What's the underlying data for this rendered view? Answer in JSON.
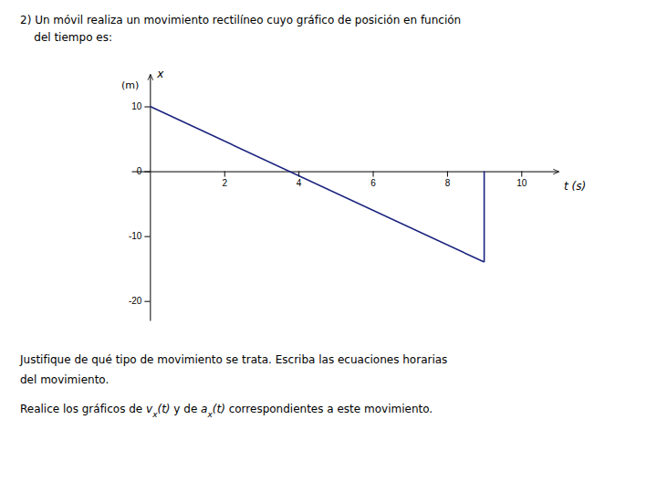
{
  "chart_data": {
    "type": "line",
    "title": "2) Un móvil realiza un movimiento rectilíneo cuyo gráfico de posición en función",
    "subtitle": "    del tiempo es:",
    "x_label": "t (s)",
    "y_label": "x",
    "y_label_unit": "(m)",
    "series": [
      {
        "x": [
          0,
          9
        ],
        "values": [
          10,
          -14
        ],
        "color": "#1a237e"
      },
      {
        "x": [
          9,
          9
        ],
        "values": [
          0,
          -14
        ],
        "color": "#1a237e"
      }
    ],
    "xlim": [
      -0.5,
      11.0
    ],
    "ylim": [
      -23,
      15
    ],
    "xticks": [
      2,
      4,
      6,
      8,
      10
    ],
    "yticks": [
      10,
      0,
      -10,
      -20
    ],
    "annotations": [
      "Justifique de qué tipo de movimiento se trata. Escriba las ecuaciones horarias",
      "del movimiento.",
      [
        "Realice los gráficos de ",
        {
          "base": "v",
          "sub": "x",
          "rest": "(t)"
        },
        " y de ",
        {
          "base": "a",
          "sub": "x",
          "rest": "(t)"
        },
        " correspondientes a este movimiento."
      ]
    ]
  }
}
